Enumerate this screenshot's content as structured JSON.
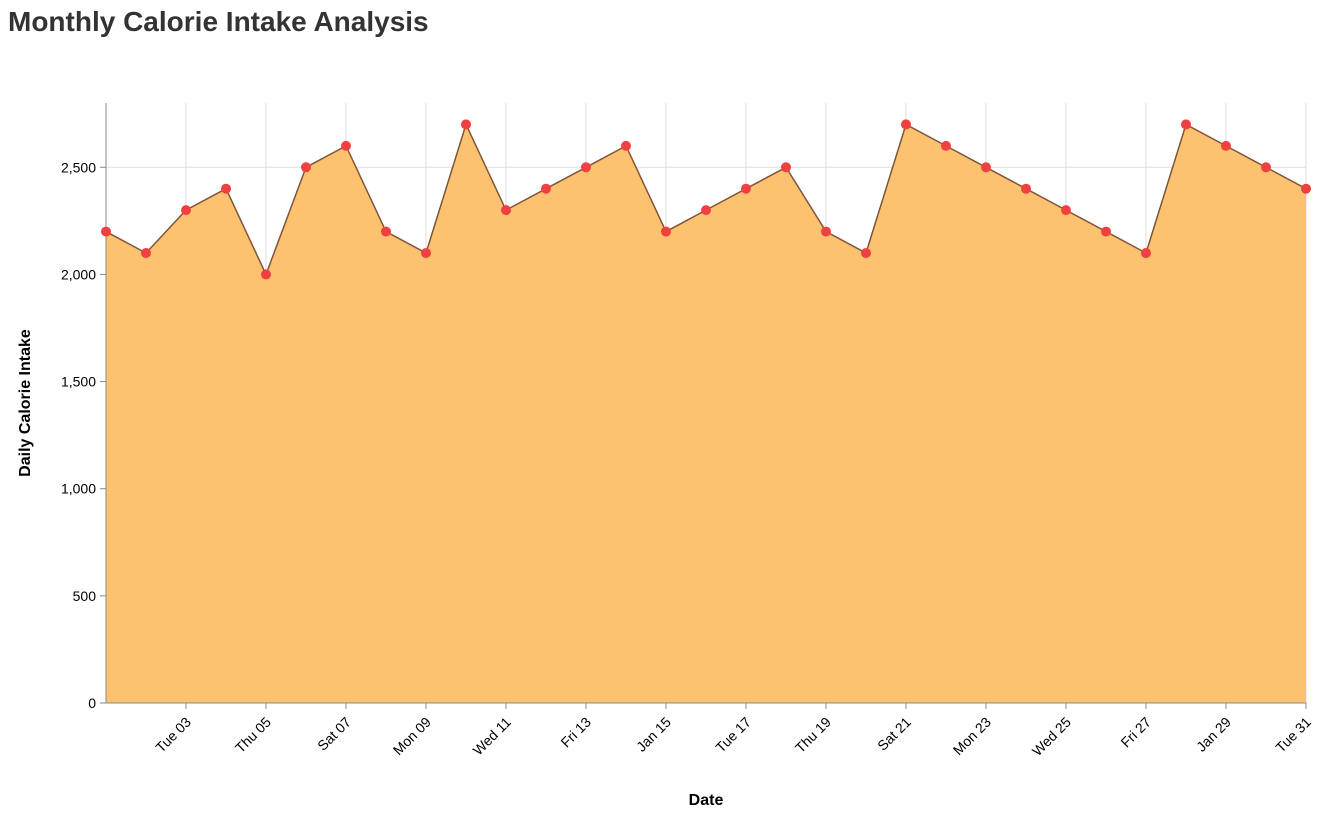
{
  "chart_data": {
    "type": "area",
    "title": "Monthly Calorie Intake Analysis",
    "xlabel": "Date",
    "ylabel": "Daily Calorie Intake",
    "ylim": [
      0,
      2800
    ],
    "y_ticks": [
      0,
      500,
      1000,
      1500,
      2000,
      2500
    ],
    "y_tick_labels": [
      "0",
      "500",
      "1,000",
      "1,500",
      "2,000",
      "2,500"
    ],
    "x_ticks": [
      "2024-01-03",
      "2024-01-05",
      "2024-01-07",
      "2024-01-09",
      "2024-01-11",
      "2024-01-13",
      "2024-01-15",
      "2024-01-17",
      "2024-01-19",
      "2024-01-21",
      "2024-01-23",
      "2024-01-25",
      "2024-01-27",
      "2024-01-29",
      "2024-01-31"
    ],
    "x_tick_labels": [
      "Tue 03",
      "Thu 05",
      "Sat 07",
      "Mon 09",
      "Wed 11",
      "Fri 13",
      "Jan 15",
      "Tue 17",
      "Thu 19",
      "Sat 21",
      "Mon 23",
      "Wed 25",
      "Fri 27",
      "Jan 29",
      "Tue 31"
    ],
    "grid": true,
    "x": [
      "2024-01-01",
      "2024-01-02",
      "2024-01-03",
      "2024-01-04",
      "2024-01-05",
      "2024-01-06",
      "2024-01-07",
      "2024-01-08",
      "2024-01-09",
      "2024-01-10",
      "2024-01-11",
      "2024-01-12",
      "2024-01-13",
      "2024-01-14",
      "2024-01-15",
      "2024-01-16",
      "2024-01-17",
      "2024-01-18",
      "2024-01-19",
      "2024-01-20",
      "2024-01-21",
      "2024-01-22",
      "2024-01-23",
      "2024-01-24",
      "2024-01-25",
      "2024-01-26",
      "2024-01-27",
      "2024-01-28",
      "2024-01-29",
      "2024-01-30",
      "2024-01-31"
    ],
    "series": [
      {
        "values": [
          2200,
          2100,
          2300,
          2400,
          2000,
          2500,
          2600,
          2200,
          2100,
          2700,
          2300,
          2400,
          2500,
          2600,
          2200,
          2300,
          2400,
          2500,
          2200,
          2100,
          2700,
          2600,
          2500,
          2400,
          2300,
          2200,
          2100,
          2700,
          2600,
          2500,
          2400
        ],
        "fill_color": "#fdbf68",
        "line_color": "#7f5539",
        "point_color": "#f04040"
      }
    ]
  }
}
